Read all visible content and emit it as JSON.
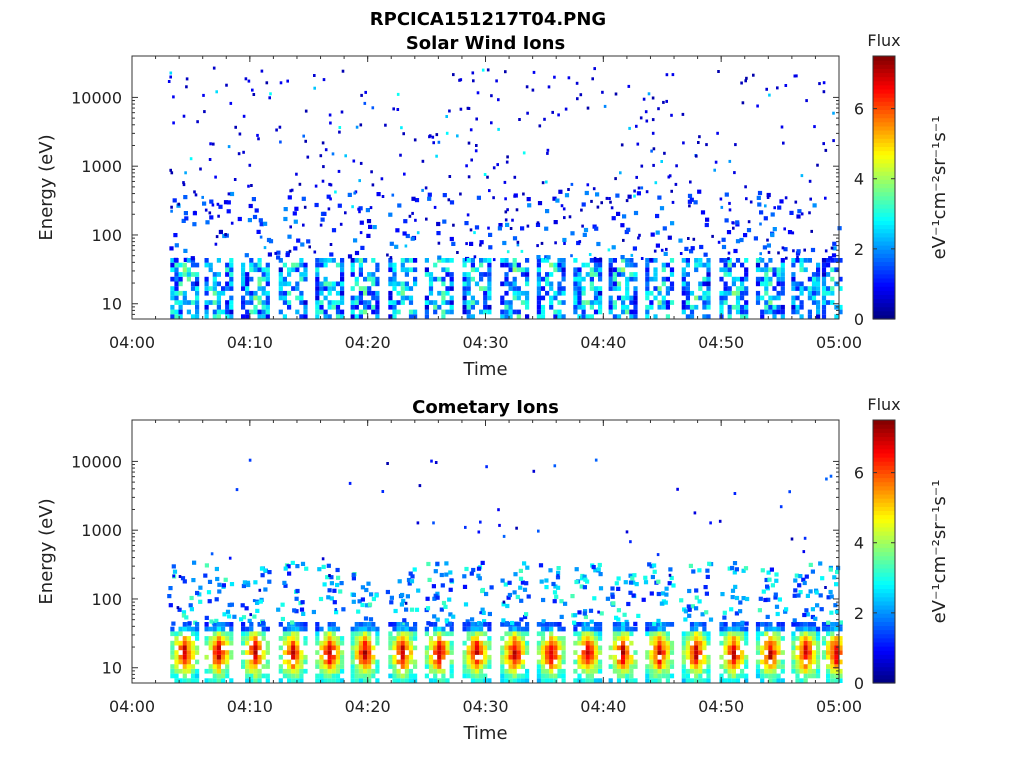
{
  "figure": {
    "title": "RPCICA151217T04.PNG"
  },
  "chart_data": [
    {
      "type": "heatmap",
      "title": "Solar Wind Ions",
      "xlabel": "Time",
      "ylabel": "Energy (eV)",
      "x_ticks": [
        "04:00",
        "04:10",
        "04:20",
        "04:30",
        "04:40",
        "04:50",
        "05:00"
      ],
      "xlim": [
        "04:00",
        "05:00"
      ],
      "y_scale": "log",
      "y_ticks": [
        10,
        100,
        1000,
        10000
      ],
      "y_tick_labels": [
        "10",
        "100",
        "1000",
        "10000"
      ],
      "ylim": [
        6,
        40000
      ],
      "colorbar": {
        "title": "Flux",
        "label": "eV⁻¹cm⁻²sr⁻¹s⁻¹",
        "ticks": [
          "0",
          "2",
          "4",
          "6"
        ],
        "range": [
          0,
          7.5
        ],
        "colormap": "jet"
      },
      "scan_times_min": [
        4.3,
        7.2,
        10.3,
        13.5,
        16.6,
        19.6,
        22.8,
        25.9,
        29.1,
        32.3,
        35.4,
        38.5,
        41.5,
        44.6,
        47.7,
        50.9,
        54.0,
        57.0,
        59.6
      ],
      "pattern": "low-energy bursts 6-40 eV, flux 1.5-4; sparse flux~0.5 points up to 30000 eV"
    },
    {
      "type": "heatmap",
      "title": "Cometary Ions",
      "xlabel": "Time",
      "ylabel": "Energy (eV)",
      "x_ticks": [
        "04:00",
        "04:10",
        "04:20",
        "04:30",
        "04:40",
        "04:50",
        "05:00"
      ],
      "xlim": [
        "04:00",
        "05:00"
      ],
      "y_scale": "log",
      "y_ticks": [
        10,
        100,
        1000,
        10000
      ],
      "y_tick_labels": [
        "10",
        "100",
        "1000",
        "10000"
      ],
      "ylim": [
        6,
        40000
      ],
      "colorbar": {
        "title": "Flux",
        "label": "eV⁻¹cm⁻²sr⁻¹s⁻¹",
        "ticks": [
          "0",
          "2",
          "4",
          "6"
        ],
        "range": [
          0,
          7.5
        ],
        "colormap": "jet"
      },
      "scan_times_min": [
        4.3,
        7.2,
        10.3,
        13.5,
        16.6,
        19.6,
        22.8,
        25.9,
        29.1,
        32.3,
        35.4,
        38.5,
        41.5,
        44.6,
        47.7,
        50.9,
        54.0,
        57.0,
        59.6
      ],
      "pattern": "intense bursts 6-40 eV, flux peaking ~6.5 near 15 eV; tails to ~300 eV; sparse points to 10000 eV"
    }
  ]
}
